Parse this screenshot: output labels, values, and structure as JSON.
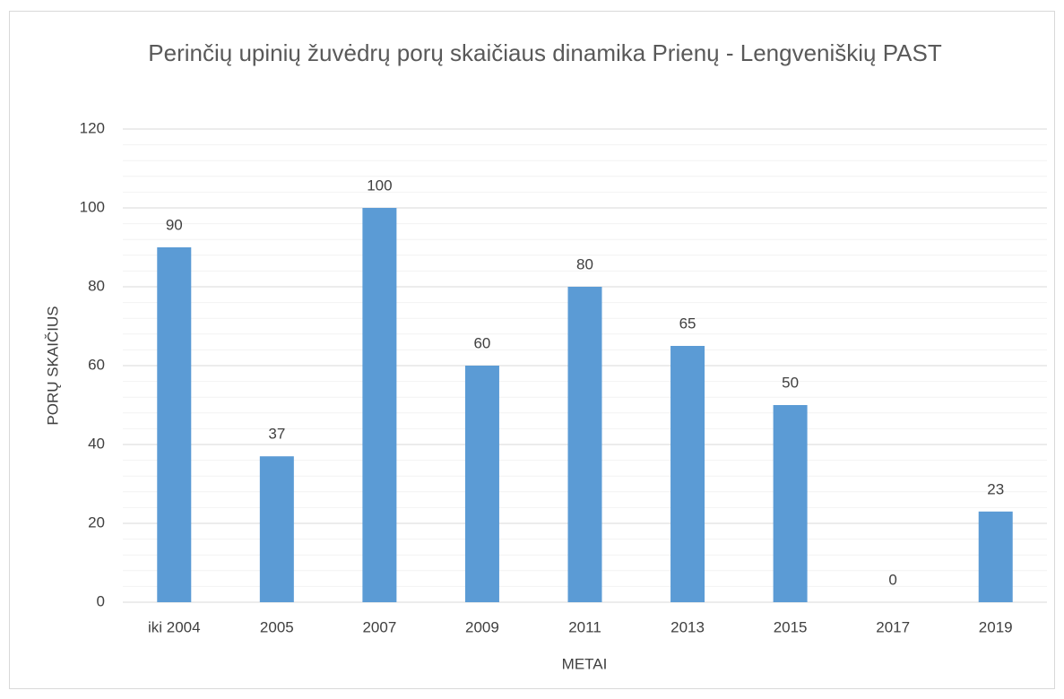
{
  "chart_data": {
    "type": "bar",
    "title": "Perinčių upinių žuvėdrų porų skaičiaus dinamika Prienų - Lengveniškių PAST",
    "x_label": "METAI",
    "y_label": "PORŲ SKAIČIUS",
    "categories": [
      "iki 2004",
      "2005",
      "2007",
      "2009",
      "2011",
      "2013",
      "2015",
      "2017",
      "2019"
    ],
    "values": [
      90,
      37,
      100,
      60,
      80,
      65,
      50,
      0,
      23
    ],
    "color": "#5b9bd5",
    "ylim": [
      0,
      120
    ],
    "yticks": [
      0,
      20,
      40,
      60,
      80,
      100,
      120
    ],
    "grid": true,
    "minor_grid": true,
    "data_labels": true
  }
}
